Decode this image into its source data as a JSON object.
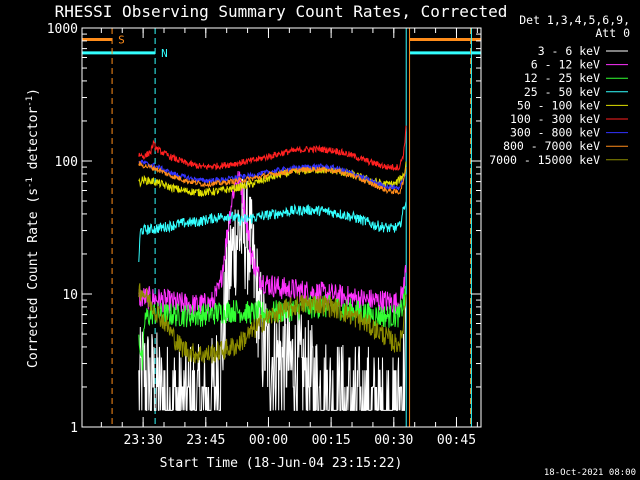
{
  "chart_data": {
    "type": "line",
    "title": "RHESSI Observing Summary Count Rates, Corrected",
    "xlabel": "Start Time (18-Jun-04 23:15:22)",
    "ylabel": "Corrected Count Rate (s-1 detector-1)",
    "ylabel_parts": [
      "Corrected Count Rate (s",
      "-1",
      " detector",
      "-1",
      ")"
    ],
    "yscale": "log",
    "ylim": [
      1,
      1000
    ],
    "xlim_minutes": [
      0,
      95.5
    ],
    "x_ticks": [
      {
        "t": 14.63,
        "label": "23:30"
      },
      {
        "t": 29.63,
        "label": "23:45"
      },
      {
        "t": 44.63,
        "label": "00:00"
      },
      {
        "t": 59.63,
        "label": "00:15"
      },
      {
        "t": 74.63,
        "label": "00:30"
      },
      {
        "t": 89.63,
        "label": "00:45"
      }
    ],
    "y_ticks": [
      {
        "v": 1,
        "label": "1"
      },
      {
        "v": 10,
        "label": "10"
      },
      {
        "v": 100,
        "label": "100"
      },
      {
        "v": 1000,
        "label": "1000"
      }
    ],
    "legend_header": [
      "Det 1,3,4,5,6,9,",
      "Att 0"
    ],
    "legend_position": "right",
    "footer": "18-Oct-2021 08:00",
    "flags": [
      {
        "label": "S",
        "color": "#ff8c1a",
        "y": 820,
        "segments": [
          [
            0,
            7.2
          ],
          [
            78.4,
            95.5
          ]
        ]
      },
      {
        "label": "N",
        "color": "#33ffff",
        "y": 650,
        "segments": [
          [
            0,
            17.5
          ],
          [
            78.4,
            95.5
          ]
        ]
      }
    ],
    "vlines": [
      {
        "t": 7.2,
        "color": "#ff8c1a",
        "style": "dashed"
      },
      {
        "t": 17.5,
        "color": "#33ffff",
        "style": "dashed"
      },
      {
        "t": 77.6,
        "color": "#33ffff",
        "style": "solid"
      },
      {
        "t": 78.4,
        "color": "#ff8c1a",
        "style": "solid"
      },
      {
        "t": 93.0,
        "color": "#ff8c1a",
        "style": "dashed"
      },
      {
        "t": 93.2,
        "color": "#33ffff",
        "style": "solid"
      }
    ],
    "series": [
      {
        "name": "3 - 6 keV",
        "color": "#ffffff",
        "noise": 0.45,
        "noisy": true,
        "points": [
          [
            13.6,
            1.8
          ],
          [
            14.5,
            2.4
          ],
          [
            17.5,
            2.0
          ],
          [
            20,
            1.6
          ],
          [
            25,
            1.5
          ],
          [
            30,
            1.5
          ],
          [
            32,
            2.0
          ],
          [
            33.5,
            4
          ],
          [
            35,
            14
          ],
          [
            37,
            28
          ],
          [
            38.5,
            30
          ],
          [
            40,
            25
          ],
          [
            41.5,
            12
          ],
          [
            43,
            5
          ],
          [
            45,
            3.2
          ],
          [
            47,
            3.4
          ],
          [
            50,
            3.0
          ],
          [
            53,
            2.5
          ],
          [
            56,
            2.0
          ],
          [
            59,
            1.7
          ],
          [
            62,
            1.6
          ],
          [
            66,
            1.5
          ],
          [
            70,
            1.4
          ],
          [
            74,
            1.3
          ],
          [
            76,
            1.4
          ],
          [
            77,
            2.5
          ],
          [
            77.6,
            5
          ]
        ]
      },
      {
        "name": "6 - 12 keV",
        "color": "#ff33ff",
        "noise": 0.09,
        "noisy": false,
        "points": [
          [
            13.6,
            9.5
          ],
          [
            17.5,
            9.2
          ],
          [
            22,
            8.6
          ],
          [
            27,
            8.2
          ],
          [
            31,
            8.5
          ],
          [
            33,
            11
          ],
          [
            34.5,
            25
          ],
          [
            36,
            55
          ],
          [
            37,
            74
          ],
          [
            38,
            68
          ],
          [
            39,
            42
          ],
          [
            40.5,
            20
          ],
          [
            42,
            14
          ],
          [
            44,
            12
          ],
          [
            48,
            11
          ],
          [
            53,
            10.5
          ],
          [
            58,
            10
          ],
          [
            63,
            9.5
          ],
          [
            68,
            9.0
          ],
          [
            73,
            8.8
          ],
          [
            76,
            8.5
          ],
          [
            77.2,
            12
          ],
          [
            77.6,
            18
          ]
        ]
      },
      {
        "name": "12 - 25 keV",
        "color": "#33ff33",
        "noise": 0.09,
        "noisy": false,
        "points": [
          [
            13.6,
            5
          ],
          [
            14.5,
            2.8
          ],
          [
            15,
            6.5
          ],
          [
            17,
            7.2
          ],
          [
            20,
            7.0
          ],
          [
            25,
            6.9
          ],
          [
            30,
            7.0
          ],
          [
            34,
            7.4
          ],
          [
            37,
            7.5
          ],
          [
            40,
            7.2
          ],
          [
            45,
            7.2
          ],
          [
            50,
            7.6
          ],
          [
            55,
            8.0
          ],
          [
            60,
            8.0
          ],
          [
            65,
            7.5
          ],
          [
            70,
            6.9
          ],
          [
            74,
            6.8
          ],
          [
            76,
            6.9
          ],
          [
            77.6,
            10
          ]
        ]
      },
      {
        "name": "25 - 50 keV",
        "color": "#33ffff",
        "noise": 0.04,
        "noisy": false,
        "points": [
          [
            13.6,
            18
          ],
          [
            14,
            30
          ],
          [
            17.5,
            31
          ],
          [
            20,
            32
          ],
          [
            24,
            34
          ],
          [
            28,
            35
          ],
          [
            31,
            37
          ],
          [
            35,
            39
          ],
          [
            38,
            36
          ],
          [
            42,
            38
          ],
          [
            46,
            40
          ],
          [
            50,
            42
          ],
          [
            54,
            43
          ],
          [
            58,
            42
          ],
          [
            62,
            40
          ],
          [
            66,
            37
          ],
          [
            70,
            33
          ],
          [
            74,
            31
          ],
          [
            76,
            32
          ],
          [
            77.6,
            52
          ]
        ]
      },
      {
        "name": "50 - 100 keV",
        "color": "#e0e000",
        "noise": 0.03,
        "noisy": false,
        "points": [
          [
            13.6,
            68
          ],
          [
            14.5,
            72
          ],
          [
            17.5,
            70
          ],
          [
            20,
            65
          ],
          [
            24,
            60
          ],
          [
            28,
            58
          ],
          [
            32,
            59
          ],
          [
            36,
            62
          ],
          [
            40,
            66
          ],
          [
            44,
            73
          ],
          [
            48,
            80
          ],
          [
            52,
            84
          ],
          [
            56,
            86
          ],
          [
            60,
            85
          ],
          [
            64,
            80
          ],
          [
            68,
            73
          ],
          [
            72,
            67
          ],
          [
            75,
            67
          ],
          [
            77.2,
            80
          ],
          [
            77.6,
            100
          ]
        ]
      },
      {
        "name": "100 - 300 keV",
        "color": "#ff2020",
        "noise": 0.025,
        "noisy": false,
        "points": [
          [
            13.6,
            112
          ],
          [
            15,
            108
          ],
          [
            16.5,
            118
          ],
          [
            17,
            135
          ],
          [
            18,
            122
          ],
          [
            21,
            108
          ],
          [
            25,
            96
          ],
          [
            29,
            90
          ],
          [
            33,
            92
          ],
          [
            37,
            96
          ],
          [
            41,
            101
          ],
          [
            45,
            109
          ],
          [
            49,
            117
          ],
          [
            53,
            122
          ],
          [
            57,
            123
          ],
          [
            61,
            119
          ],
          [
            65,
            109
          ],
          [
            69,
            98
          ],
          [
            73,
            90
          ],
          [
            76,
            90
          ],
          [
            77,
            115
          ],
          [
            77.6,
            180
          ]
        ]
      },
      {
        "name": "300 - 800 keV",
        "color": "#3333ff",
        "noise": 0.02,
        "noisy": false,
        "points": [
          [
            13.6,
            100
          ],
          [
            15,
            96
          ],
          [
            17.5,
            92
          ],
          [
            21,
            82
          ],
          [
            25,
            75
          ],
          [
            29,
            71
          ],
          [
            33,
            72
          ],
          [
            37,
            75
          ],
          [
            41,
            78
          ],
          [
            45,
            83
          ],
          [
            49,
            87
          ],
          [
            53,
            90
          ],
          [
            57,
            91
          ],
          [
            61,
            88
          ],
          [
            65,
            80
          ],
          [
            69,
            71
          ],
          [
            73,
            64
          ],
          [
            76,
            63
          ],
          [
            77.6,
            80
          ]
        ]
      },
      {
        "name": "800 - 7000 keV",
        "color": "#ff8c1a",
        "noise": 0.02,
        "noisy": false,
        "points": [
          [
            13.6,
            95
          ],
          [
            15,
            92
          ],
          [
            17.5,
            88
          ],
          [
            21,
            78
          ],
          [
            25,
            71
          ],
          [
            29,
            67
          ],
          [
            33,
            68
          ],
          [
            37,
            71
          ],
          [
            41,
            74
          ],
          [
            45,
            79
          ],
          [
            49,
            83
          ],
          [
            53,
            86
          ],
          [
            57,
            87
          ],
          [
            61,
            84
          ],
          [
            65,
            77
          ],
          [
            69,
            68
          ],
          [
            73,
            60
          ],
          [
            76,
            58
          ],
          [
            77.2,
            75
          ],
          [
            77.6,
            95
          ]
        ]
      },
      {
        "name": "7000 - 15000 keV",
        "color": "#8c8c00",
        "noise": 0.08,
        "noisy": false,
        "points": [
          [
            13.6,
            11
          ],
          [
            15,
            10
          ],
          [
            17,
            8
          ],
          [
            20,
            6
          ],
          [
            23,
            4.2
          ],
          [
            26,
            3.6
          ],
          [
            30,
            3.5
          ],
          [
            34,
            3.8
          ],
          [
            37,
            4.1
          ],
          [
            40,
            5
          ],
          [
            44,
            6.5
          ],
          [
            48,
            7.5
          ],
          [
            52,
            8.3
          ],
          [
            56,
            8.5
          ],
          [
            60,
            8.0
          ],
          [
            64,
            7.0
          ],
          [
            68,
            6.0
          ],
          [
            72,
            5.0
          ],
          [
            75,
            4.2
          ],
          [
            76.5,
            4.5
          ],
          [
            77.6,
            10
          ]
        ]
      }
    ]
  }
}
